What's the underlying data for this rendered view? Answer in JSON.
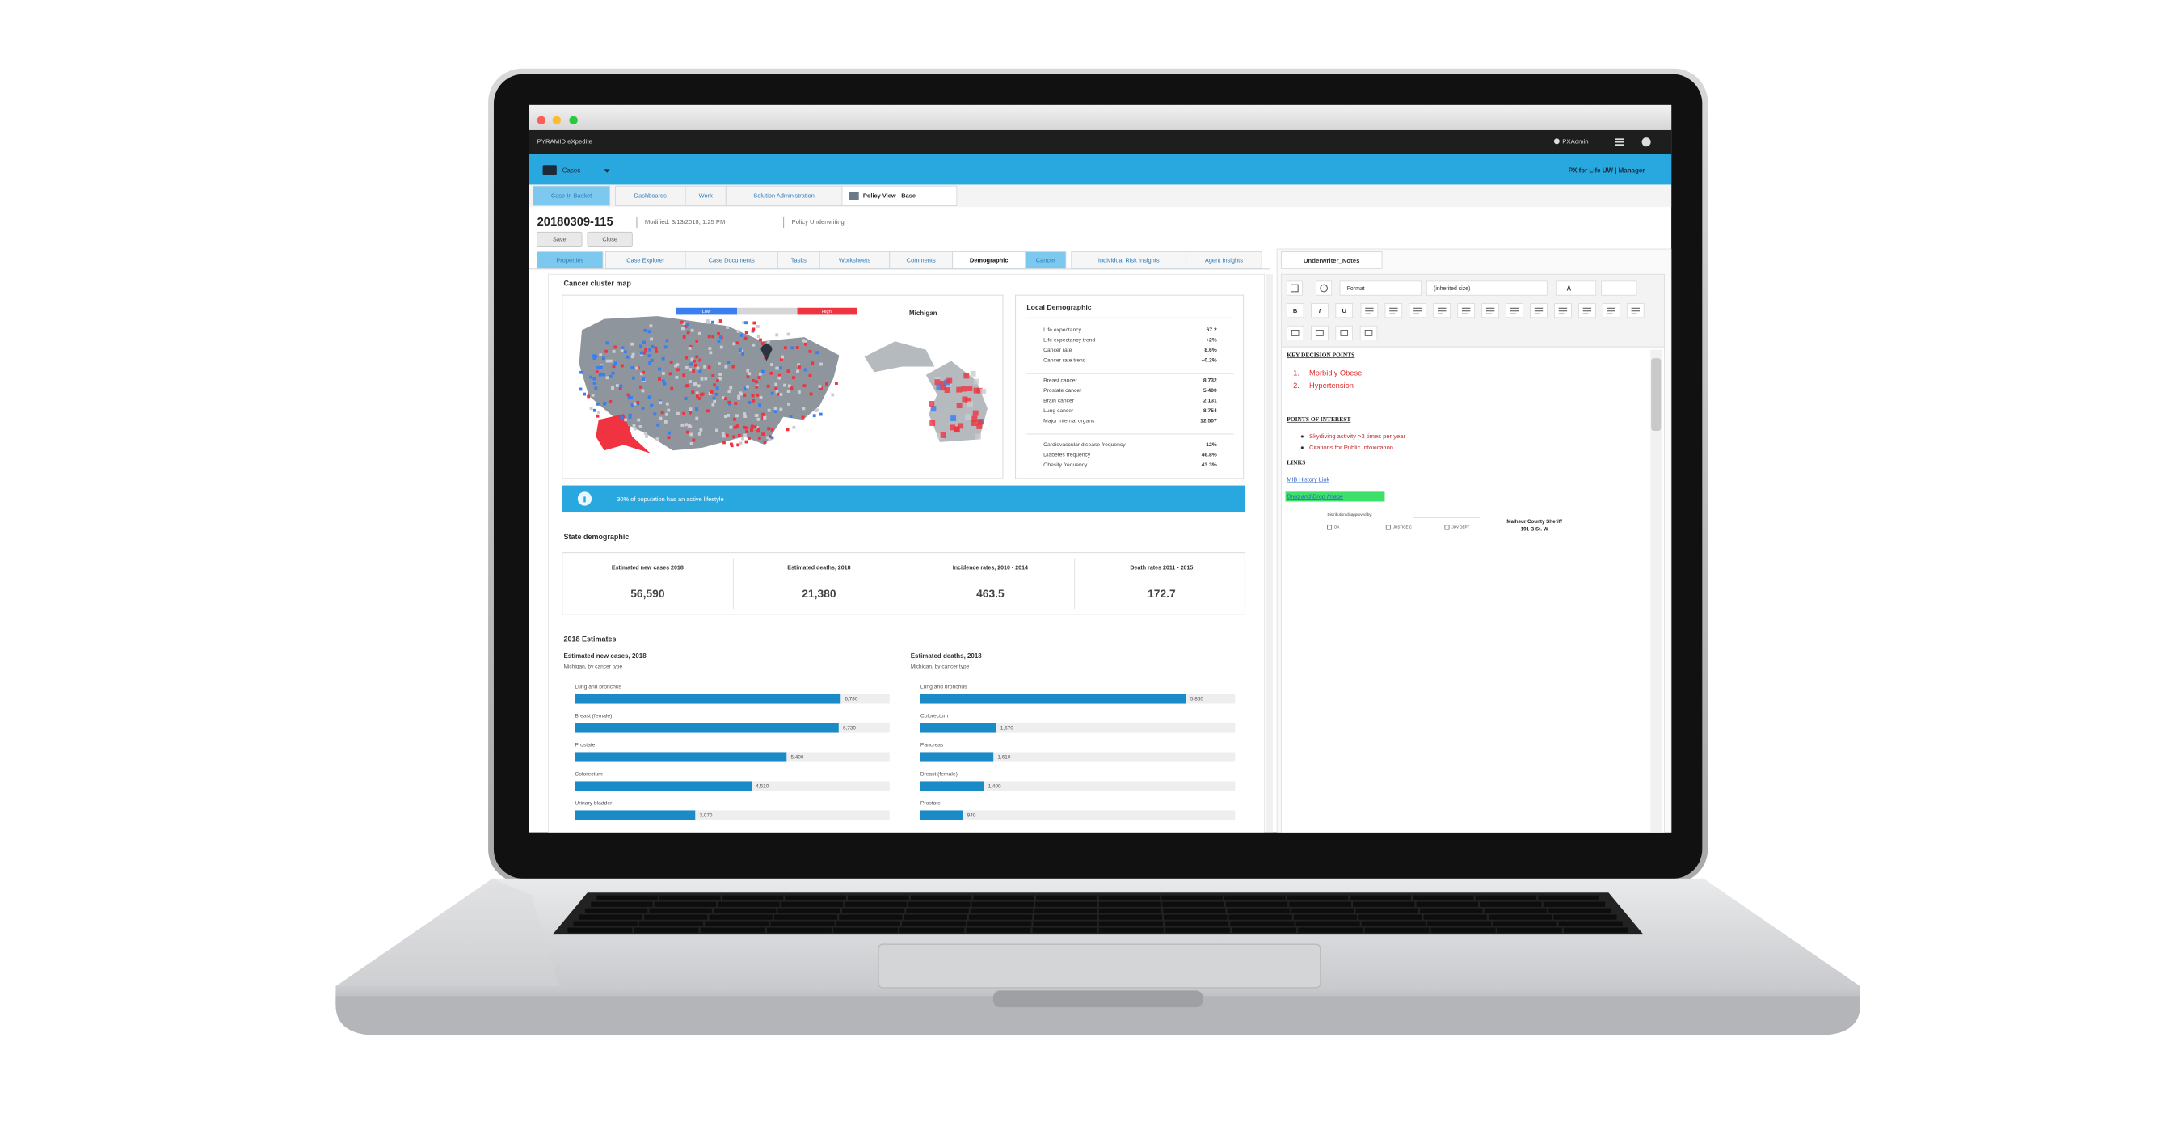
{
  "window": {
    "app_name": "PYRAMID eXpedite",
    "user": "PXAdmin"
  },
  "header": {
    "menu": "Cases",
    "portal": "PX for Life UW | Manager"
  },
  "tabs": [
    "Case In Basket",
    "Dashboards",
    "Work",
    "Solution Administration",
    "Policy View - Base"
  ],
  "case": {
    "id": "20180309-115",
    "modified": "Modified:  3/13/2018, 1:25 PM",
    "type": "Policy Underwriting",
    "actions": [
      "Save",
      "Close"
    ]
  },
  "subtabs": [
    "Properties",
    "Case Explorer",
    "Case Documents",
    "Tasks",
    "Worksheets",
    "Comments",
    "Demographic",
    "Cancer",
    "Individual Risk Insights",
    "Agent Insights"
  ],
  "cluster_map": {
    "title": "Cancer cluster map",
    "legend": [
      "Low",
      "High"
    ],
    "region": "Michigan"
  },
  "local_demographic": {
    "title": "Local Demographic",
    "groups": [
      [
        {
          "label": "Life expectancy",
          "value": "67.2"
        },
        {
          "label": "Life expectancy trend",
          "value": "+2%"
        },
        {
          "label": "Cancer rate",
          "value": "8.6%"
        },
        {
          "label": "Cancer rate trend",
          "value": "+0.2%"
        }
      ],
      [
        {
          "label": "Breast cancer",
          "value": "8,732"
        },
        {
          "label": "Prostate cancer",
          "value": "5,400"
        },
        {
          "label": "Brain cancer",
          "value": "2,131"
        },
        {
          "label": "Lung cancer",
          "value": "8,754"
        },
        {
          "label": "Major internal organs",
          "value": "12,507"
        }
      ],
      [
        {
          "label": "Cardiovascular disease frequency",
          "value": "12%"
        },
        {
          "label": "Diabetes frequency",
          "value": "46.8%"
        },
        {
          "label": "Obesity frequency",
          "value": "43.3%"
        }
      ]
    ]
  },
  "banner": "30% of population has an active lifestyle",
  "state_demographic": {
    "title": "State demographic",
    "stats": [
      {
        "label": "Estimated new cases 2018",
        "value": "56,590"
      },
      {
        "label": "Estimated deaths, 2018",
        "value": "21,380"
      },
      {
        "label": "Incidence rates, 2010 - 2014",
        "value": "463.5"
      },
      {
        "label": "Death rates 2011 - 2015",
        "value": "172.7"
      }
    ]
  },
  "estimates": {
    "title": "2018 Estimates",
    "charts": [
      {
        "type": "bar",
        "title": "Estimated new cases, 2018",
        "subtitle": "Michigan, by cancer type",
        "color": "#1b8bc8",
        "categories": [
          "Lung and bronchus",
          "Breast (female)",
          "Prostate",
          "Colorectum",
          "Urinary bladder"
        ],
        "values": [
          6780,
          6730,
          5400,
          4510,
          3070
        ],
        "value_labels": [
          "6,780",
          "6,730",
          "5,400",
          "4,510",
          "3,070"
        ]
      },
      {
        "type": "bar",
        "title": "Estimated deaths, 2018",
        "subtitle": "Michigan, by cancer type",
        "color": "#1b8bc8",
        "categories": [
          "Lung and bronchus",
          "Colorectum",
          "Pancreas",
          "Breast (female)",
          "Prostate"
        ],
        "values": [
          5860,
          1670,
          1610,
          1400,
          940
        ],
        "value_labels": [
          "5,860",
          "1,670",
          "1,610",
          "1,400",
          "940"
        ]
      }
    ]
  },
  "notes": {
    "tab": "Underwriter_Notes",
    "format": "Format",
    "size": "(inherited size)",
    "toolbar": [
      "B",
      "I",
      "U",
      "A"
    ],
    "key_heading": "KEY DECISION POINTS",
    "key_points": [
      {
        "marker": "1.",
        "text": "Morbidly Obese"
      },
      {
        "marker": "2.",
        "text": "Hypertension"
      }
    ],
    "interest_heading": "POINTS OF INTEREST",
    "interest_points": [
      "Skydiving activity >3 times per year",
      "Citations for Public Intoxication"
    ],
    "links_heading": "LINKS",
    "link": "MIB History Link",
    "drop": "Drag and Drop Image",
    "image": {
      "caption": "Distribution disapproved by:",
      "options": [
        "DA",
        "JUSTICE C",
        "JUV DEPT"
      ],
      "agency": "Malheur County Sheriff",
      "address": "191 B St. W"
    }
  }
}
